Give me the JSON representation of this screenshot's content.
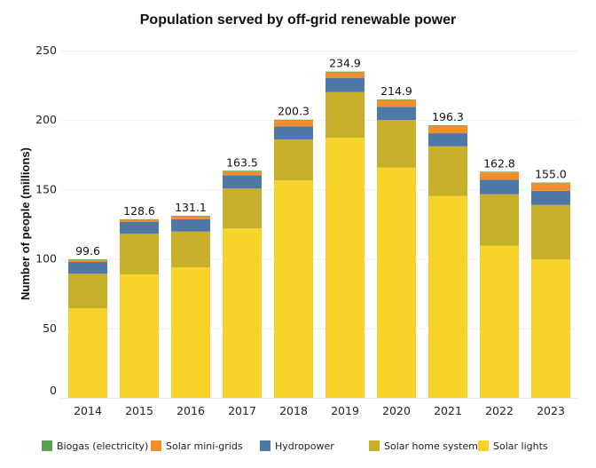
{
  "chart_data": {
    "type": "bar",
    "stacked": true,
    "title": "Population served by off-grid renewable power",
    "xlabel": "",
    "ylabel": "Number of people (millions)",
    "ylim": [
      0,
      250
    ],
    "yticks": [
      0,
      50,
      100,
      150,
      200,
      250
    ],
    "grid": true,
    "legend_position": "bottom",
    "categories": [
      "2014",
      "2015",
      "2016",
      "2017",
      "2018",
      "2019",
      "2020",
      "2021",
      "2022",
      "2023"
    ],
    "totals": [
      99.6,
      128.6,
      131.1,
      163.5,
      200.3,
      234.9,
      214.9,
      196.3,
      162.8,
      155.0
    ],
    "total_labels": [
      "99.6",
      "128.6",
      "131.1",
      "163.5",
      "200.3",
      "234.9",
      "214.9",
      "196.3",
      "162.8",
      "155.0"
    ],
    "series": [
      {
        "name": "Solar lights",
        "color": "#f7d229",
        "values": [
          64.4,
          88.9,
          94.0,
          121.9,
          156.5,
          187.3,
          165.8,
          145.3,
          109.5,
          99.6
        ]
      },
      {
        "name": "Solar home systems",
        "color": "#c9b02a",
        "values": [
          24.9,
          29.2,
          25.8,
          28.8,
          29.6,
          32.8,
          34.2,
          35.8,
          37.1,
          39.3
        ]
      },
      {
        "name": "Hydropower",
        "color": "#4e79a7",
        "values": [
          8.5,
          8.5,
          8.9,
          9.6,
          9.4,
          10.3,
          9.5,
          9.4,
          10.5,
          10.1
        ]
      },
      {
        "name": "Solar mini-grids",
        "color": "#f28e2b",
        "values": [
          1.3,
          1.5,
          1.9,
          2.7,
          4.3,
          4.0,
          4.9,
          5.3,
          5.2,
          5.5
        ]
      },
      {
        "name": "Biogas (electricity)",
        "color": "#59a14f",
        "values": [
          0.5,
          0.5,
          0.5,
          0.5,
          0.5,
          0.5,
          0.5,
          0.5,
          0.5,
          0.5
        ]
      }
    ],
    "legend": [
      {
        "name": "Biogas (electricity)",
        "color": "#59a14f"
      },
      {
        "name": "Solar mini-grids",
        "color": "#f28e2b"
      },
      {
        "name": "Hydropower",
        "color": "#4e79a7"
      },
      {
        "name": "Solar home systems",
        "color": "#c9b02a"
      },
      {
        "name": "Solar lights",
        "color": "#f7d229"
      }
    ]
  }
}
